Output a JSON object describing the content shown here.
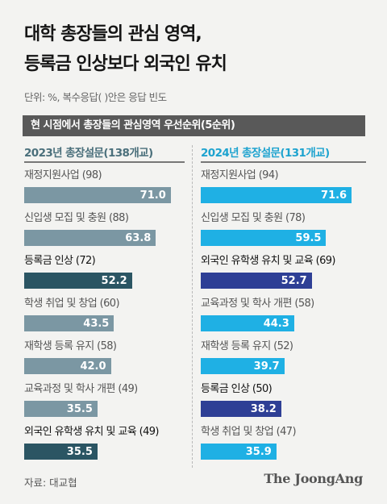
{
  "title_line1": "대학 총장들의 관심 영역,",
  "title_line2": "등록금 인상보다 외국인 유치",
  "unit_note": "단위: %, 복수응답( )안은 응답 빈도",
  "header": "현 시점에서 총장들의 관심영역 우선순위(5순위)",
  "source": "자료: 대교협",
  "logo": "The JoongAng",
  "colors": {
    "left_default": "#7b97a3",
    "left_highlight": "#2b5563",
    "right_default": "#1fb0e4",
    "right_highlight": "#2e3f95"
  },
  "chart_data": [
    {
      "type": "bar",
      "title": "2023년 총장설문(138개교)",
      "categories": [
        "재정지원사업 (98)",
        "신입생 모집 및 충원 (88)",
        "등록금 인상 (72)",
        "학생 취업 및 창업 (60)",
        "재학생 등록 유지 (58)",
        "교육과정 및 학사 개편 (49)",
        "외국인 유학생 유치 및 교육 (49)"
      ],
      "values": [
        71.0,
        63.8,
        52.2,
        43.5,
        42.0,
        35.5,
        35.5
      ],
      "value_labels": [
        "71.0",
        "63.8",
        "52.2",
        "43.5",
        "42.0",
        "35.5",
        "35.5"
      ],
      "highlight": [
        false,
        false,
        true,
        false,
        false,
        false,
        true
      ],
      "xlim": [
        0,
        75
      ]
    },
    {
      "type": "bar",
      "title": "2024년 총장설문(131개교)",
      "categories": [
        "재정지원사업 (94)",
        "신입생 모집 및 충원 (78)",
        "외국인 유학생 유치 및 교육 (69)",
        "교육과정 및 학사 개편 (58)",
        "재학생 등록 유지 (52)",
        "등록금 인상 (50)",
        "학생 취업 및 창업 (47)"
      ],
      "values": [
        71.6,
        59.5,
        52.7,
        44.3,
        39.7,
        38.2,
        35.9
      ],
      "value_labels": [
        "71.6",
        "59.5",
        "52.7",
        "44.3",
        "39.7",
        "38.2",
        "35.9"
      ],
      "highlight": [
        false,
        false,
        true,
        false,
        false,
        true,
        false
      ],
      "xlim": [
        0,
        75
      ]
    }
  ]
}
